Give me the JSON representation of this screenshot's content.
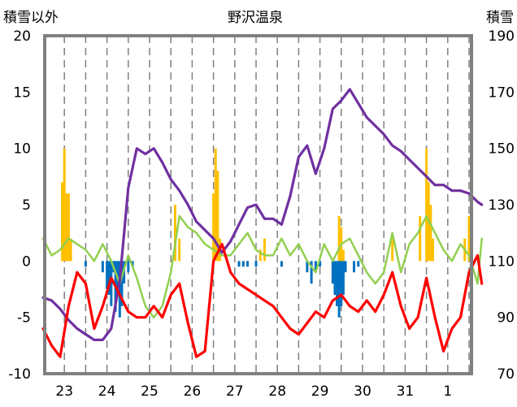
{
  "chart_data": {
    "type": "line",
    "title": "野沢温泉",
    "left_axis_label": "積雪以外",
    "right_axis_label": "積雪",
    "left_ylim": [
      -10,
      20
    ],
    "left_ticks": [
      20,
      15,
      10,
      5,
      0,
      -5,
      -10
    ],
    "right_ylim": [
      70,
      190
    ],
    "right_ticks": [
      190,
      170,
      150,
      130,
      110,
      90,
      70
    ],
    "xlim": [
      0,
      10
    ],
    "x_tick_labels": [
      "23",
      "24",
      "25",
      "26",
      "27",
      "28",
      "29",
      "30",
      "31",
      "1"
    ],
    "grid": "dashed vertical lines at day boundaries and mid-days",
    "legend": "none",
    "colors": {
      "frame": "#808080",
      "grid": "#808080",
      "snowfall": "#ffc000",
      "precip": "#0070c0",
      "snow_depth": "#7030a0",
      "temperature": "#ff0000",
      "wind": "#92d050"
    },
    "snowfall_bars": [
      {
        "x": 0.45,
        "y": 7
      },
      {
        "x": 0.5,
        "y": 10
      },
      {
        "x": 0.55,
        "y": 6
      },
      {
        "x": 0.6,
        "y": 6
      },
      {
        "x": 0.65,
        "y": 2
      },
      {
        "x": 3.1,
        "y": 5
      },
      {
        "x": 3.2,
        "y": 2
      },
      {
        "x": 4.0,
        "y": 6
      },
      {
        "x": 4.05,
        "y": 10
      },
      {
        "x": 4.1,
        "y": 8
      },
      {
        "x": 4.15,
        "y": 2
      },
      {
        "x": 5.1,
        "y": 1
      },
      {
        "x": 5.2,
        "y": 2
      },
      {
        "x": 6.95,
        "y": 4
      },
      {
        "x": 7.0,
        "y": 3
      },
      {
        "x": 7.05,
        "y": 1
      },
      {
        "x": 8.2,
        "y": 2
      },
      {
        "x": 8.85,
        "y": 4
      },
      {
        "x": 9.0,
        "y": 10
      },
      {
        "x": 9.05,
        "y": 7
      },
      {
        "x": 9.1,
        "y": 5
      },
      {
        "x": 9.15,
        "y": 2
      },
      {
        "x": 9.9,
        "y": 2
      },
      {
        "x": 10.0,
        "y": 4
      },
      {
        "x": 10.05,
        "y": 3
      }
    ],
    "precip_bars": [
      {
        "x": 1.0,
        "y": -0.5
      },
      {
        "x": 1.4,
        "y": -1
      },
      {
        "x": 1.5,
        "y": -2.5
      },
      {
        "x": 1.55,
        "y": -3
      },
      {
        "x": 1.6,
        "y": -4
      },
      {
        "x": 1.65,
        "y": -1
      },
      {
        "x": 1.7,
        "y": -4.5
      },
      {
        "x": 1.75,
        "y": -3
      },
      {
        "x": 1.8,
        "y": -5
      },
      {
        "x": 1.85,
        "y": -4
      },
      {
        "x": 1.9,
        "y": -2
      },
      {
        "x": 2.0,
        "y": -1
      },
      {
        "x": 2.1,
        "y": -0.5
      },
      {
        "x": 4.6,
        "y": -0.5
      },
      {
        "x": 4.7,
        "y": -0.5
      },
      {
        "x": 4.8,
        "y": -0.5
      },
      {
        "x": 5.0,
        "y": -0.5
      },
      {
        "x": 5.6,
        "y": -0.5
      },
      {
        "x": 6.2,
        "y": -1
      },
      {
        "x": 6.3,
        "y": -2
      },
      {
        "x": 6.4,
        "y": -1
      },
      {
        "x": 6.5,
        "y": -0.5
      },
      {
        "x": 6.8,
        "y": -2
      },
      {
        "x": 6.85,
        "y": -3
      },
      {
        "x": 6.9,
        "y": -4
      },
      {
        "x": 6.95,
        "y": -5
      },
      {
        "x": 7.0,
        "y": -4
      },
      {
        "x": 7.05,
        "y": -3
      },
      {
        "x": 7.1,
        "y": -1
      },
      {
        "x": 7.3,
        "y": -1
      },
      {
        "x": 7.4,
        "y": -0.5
      }
    ],
    "series": [
      {
        "key": "snow_depth",
        "axis": "right",
        "x": [
          0.0,
          0.2,
          0.4,
          0.6,
          0.8,
          1.0,
          1.2,
          1.4,
          1.6,
          1.8,
          2.0,
          2.2,
          2.4,
          2.6,
          2.8,
          3.0,
          3.2,
          3.4,
          3.6,
          3.8,
          4.0,
          4.2,
          4.4,
          4.6,
          4.8,
          5.0,
          5.2,
          5.4,
          5.6,
          5.8,
          6.0,
          6.2,
          6.4,
          6.6,
          6.8,
          7.0,
          7.2,
          7.4,
          7.6,
          7.8,
          8.0,
          8.2,
          8.4,
          8.6,
          8.8,
          9.0,
          9.2,
          9.4,
          9.6,
          9.8,
          10.0,
          10.2,
          10.3
        ],
        "y": [
          97,
          96,
          93,
          89,
          86,
          84,
          82,
          82,
          86,
          103,
          136,
          150,
          148,
          150,
          145,
          139,
          135,
          130,
          124,
          121,
          118,
          113,
          117,
          123,
          129,
          130,
          125,
          125,
          123,
          133,
          147,
          151,
          141,
          150,
          164,
          167,
          171,
          166,
          161,
          158,
          155,
          151,
          149,
          146,
          143,
          140,
          137,
          137,
          135,
          135,
          134,
          131,
          130
        ]
      },
      {
        "key": "temperature",
        "axis": "left",
        "x": [
          0.0,
          0.2,
          0.4,
          0.6,
          0.8,
          1.0,
          1.2,
          1.4,
          1.6,
          1.8,
          2.0,
          2.2,
          2.4,
          2.6,
          2.8,
          3.0,
          3.2,
          3.4,
          3.6,
          3.8,
          4.0,
          4.2,
          4.4,
          4.6,
          4.8,
          5.0,
          5.2,
          5.4,
          5.6,
          5.8,
          6.0,
          6.2,
          6.4,
          6.6,
          6.8,
          7.0,
          7.2,
          7.4,
          7.6,
          7.8,
          8.0,
          8.2,
          8.4,
          8.6,
          8.8,
          9.0,
          9.2,
          9.4,
          9.6,
          9.8,
          10.0,
          10.2,
          10.3
        ],
        "y": [
          -6,
          -7.5,
          -8.5,
          -4,
          -1,
          -2,
          -6,
          -4,
          -1.5,
          -3,
          -4.5,
          -5,
          -5,
          -4,
          -5,
          -3,
          -2,
          -5.5,
          -8.5,
          -8,
          0,
          1.5,
          -1,
          -2,
          -2.5,
          -3,
          -3.5,
          -4,
          -5,
          -6,
          -6.5,
          -5.5,
          -4.5,
          -5,
          -3.5,
          -3,
          -4,
          -4.5,
          -3.5,
          -4.5,
          -3,
          -1,
          -4,
          -6,
          -5,
          -1.5,
          -5,
          -8,
          -6,
          -5,
          -1,
          0.5,
          -2
        ]
      },
      {
        "key": "wind",
        "axis": "left",
        "x": [
          0.0,
          0.2,
          0.4,
          0.6,
          0.8,
          1.0,
          1.2,
          1.4,
          1.6,
          1.8,
          2.0,
          2.2,
          2.4,
          2.6,
          2.8,
          3.0,
          3.2,
          3.4,
          3.6,
          3.8,
          4.0,
          4.2,
          4.4,
          4.6,
          4.8,
          5.0,
          5.2,
          5.4,
          5.6,
          5.8,
          6.0,
          6.2,
          6.4,
          6.6,
          6.8,
          7.0,
          7.2,
          7.4,
          7.6,
          7.8,
          8.0,
          8.2,
          8.4,
          8.6,
          8.8,
          9.0,
          9.2,
          9.4,
          9.6,
          9.8,
          10.0,
          10.2,
          10.3
        ],
        "y": [
          2,
          0.5,
          1,
          2,
          1.5,
          1,
          0,
          1.5,
          0,
          -2,
          0.5,
          -1.5,
          -4,
          -5,
          -4,
          -1,
          4,
          3,
          2.5,
          1.5,
          1,
          0.5,
          0.5,
          1.5,
          2.5,
          1,
          0.5,
          0.5,
          2,
          0.5,
          1.5,
          0,
          -1,
          1.5,
          0,
          1.5,
          2,
          0.5,
          -1,
          -2,
          -1,
          2.5,
          -1,
          1.5,
          2.5,
          4,
          2.5,
          1,
          0,
          1.5,
          0.5,
          -2,
          2
        ]
      }
    ]
  }
}
